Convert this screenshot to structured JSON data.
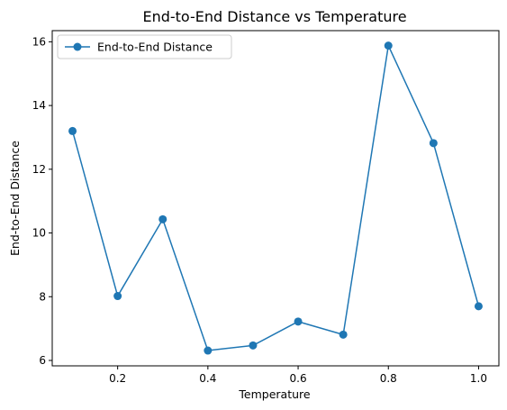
{
  "chart_data": {
    "type": "line",
    "title": "End-to-End Distance vs Temperature",
    "xlabel": "Temperature",
    "ylabel": "End-to-End Distance",
    "x": [
      0.1,
      0.2,
      0.3,
      0.4,
      0.5,
      0.6,
      0.7,
      0.8,
      0.9,
      1.0
    ],
    "series": [
      {
        "name": "End-to-End Distance",
        "values": [
          13.2,
          8.02,
          10.43,
          6.31,
          6.47,
          7.22,
          6.81,
          15.88,
          12.82,
          7.7
        ],
        "color": "#1f77b4",
        "marker": "circle"
      }
    ],
    "xlim": [
      0.055,
      1.045
    ],
    "ylim": [
      5.83,
      16.35
    ],
    "xticks": [
      0.2,
      0.4,
      0.6,
      0.8,
      1.0
    ],
    "xtick_labels": [
      "0.2",
      "0.4",
      "0.6",
      "0.8",
      "1.0"
    ],
    "yticks": [
      6,
      8,
      10,
      12,
      14,
      16
    ],
    "ytick_labels": [
      "6",
      "8",
      "10",
      "12",
      "14",
      "16"
    ],
    "grid": false,
    "legend_position": "top-left"
  }
}
